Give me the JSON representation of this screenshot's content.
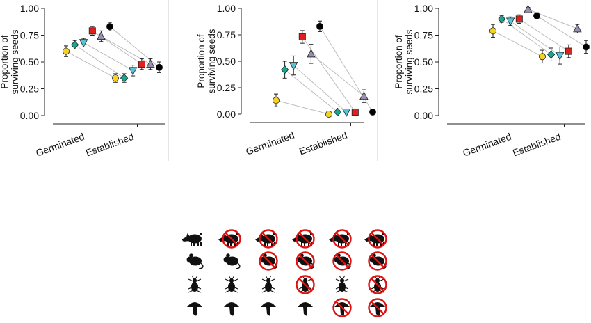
{
  "colors": {
    "guild_1": "#f4d21f",
    "guild_2": "#1aa58e",
    "guild_3": "#56c5d8",
    "guild_4": "#e0201d",
    "guild_5": "#9a8fb0",
    "guild_6": "#000000",
    "exclusion": "#e01010",
    "silhouette": "#111111",
    "connector": "#bdbdbd"
  },
  "legend": {
    "rows": [
      {
        "icon": "boar-silhouette-icon",
        "excluded": [
          false,
          true,
          true,
          true,
          true,
          true
        ]
      },
      {
        "icon": "rodent-silhouette-icon",
        "excluded": [
          false,
          false,
          true,
          true,
          true,
          true
        ]
      },
      {
        "icon": "beetle-silhouette-icon",
        "excluded": [
          false,
          false,
          false,
          true,
          false,
          true
        ]
      },
      {
        "icon": "fungus-silhouette-icon",
        "excluded": [
          false,
          false,
          false,
          false,
          true,
          true
        ]
      }
    ]
  },
  "chart_data": [
    {
      "type": "scatter",
      "ylabel": "Proportion of surviving seeds",
      "ylabel_lines": [
        "Proportion of",
        "surviving seeds"
      ],
      "categories": [
        "Germinated",
        "Established"
      ],
      "ylim": [
        0,
        1
      ],
      "yticks": [
        "0.00",
        "0.25",
        "0.50",
        "0.75",
        "1.00"
      ],
      "series": [
        {
          "marker": "circle",
          "color": "#f4d21f",
          "values": [
            0.6,
            0.35
          ],
          "err": [
            0.05,
            0.04
          ]
        },
        {
          "marker": "diamond",
          "color": "#1aa58e",
          "values": [
            0.66,
            0.35
          ],
          "err": [
            0.04,
            0.04
          ]
        },
        {
          "marker": "triangle-down",
          "color": "#56c5d8",
          "values": [
            0.68,
            0.42
          ],
          "err": [
            0.04,
            0.05
          ]
        },
        {
          "marker": "square",
          "color": "#e0201d",
          "values": [
            0.79,
            0.48
          ],
          "err": [
            0.04,
            0.05
          ]
        },
        {
          "marker": "triangle-up",
          "color": "#9a8fb0",
          "values": [
            0.74,
            0.48
          ],
          "err": [
            0.05,
            0.05
          ]
        },
        {
          "marker": "circle",
          "color": "#000000",
          "values": [
            0.83,
            0.45
          ],
          "err": [
            0.04,
            0.05
          ]
        }
      ]
    },
    {
      "type": "scatter",
      "ylabel": "Proportion of surviving seeds",
      "ylabel_lines": [
        "Proportion of",
        "surviving seeds"
      ],
      "categories": [
        "Germinated",
        "Established"
      ],
      "ylim": [
        0,
        1
      ],
      "yticks": [
        "0.00",
        "0.25",
        "0.50",
        "0.75",
        "1.00"
      ],
      "series": [
        {
          "marker": "circle",
          "color": "#f4d21f",
          "values": [
            0.13,
            0.0
          ],
          "err": [
            0.06,
            0.0
          ]
        },
        {
          "marker": "diamond",
          "color": "#1aa58e",
          "values": [
            0.42,
            0.02
          ],
          "err": [
            0.08,
            0.0
          ]
        },
        {
          "marker": "triangle-down",
          "color": "#56c5d8",
          "values": [
            0.46,
            0.02
          ],
          "err": [
            0.09,
            0.0
          ]
        },
        {
          "marker": "square",
          "color": "#e0201d",
          "values": [
            0.73,
            0.02
          ],
          "err": [
            0.06,
            0.0
          ]
        },
        {
          "marker": "triangle-up",
          "color": "#9a8fb0",
          "values": [
            0.57,
            0.17
          ],
          "err": [
            0.09,
            0.06
          ]
        },
        {
          "marker": "circle",
          "color": "#000000",
          "values": [
            0.83,
            0.02
          ],
          "err": [
            0.05,
            0.0
          ]
        }
      ]
    },
    {
      "type": "scatter",
      "ylabel": "Proportion of surviving seeds",
      "ylabel_lines": [
        "Proportion of",
        "surviving seeds"
      ],
      "categories": [
        "Germinated",
        "Established"
      ],
      "ylim": [
        0,
        1
      ],
      "yticks": [
        "0.00",
        "0.25",
        "0.50",
        "0.75",
        "1.00"
      ],
      "series": [
        {
          "marker": "circle",
          "color": "#f4d21f",
          "values": [
            0.79,
            0.55
          ],
          "err": [
            0.06,
            0.06
          ]
        },
        {
          "marker": "diamond",
          "color": "#1aa58e",
          "values": [
            0.9,
            0.57
          ],
          "err": [
            0.03,
            0.06
          ]
        },
        {
          "marker": "triangle-down",
          "color": "#56c5d8",
          "values": [
            0.88,
            0.56
          ],
          "err": [
            0.04,
            0.08
          ]
        },
        {
          "marker": "square",
          "color": "#e0201d",
          "values": [
            0.9,
            0.6
          ],
          "err": [
            0.04,
            0.06
          ]
        },
        {
          "marker": "triangle-up",
          "color": "#9a8fb0",
          "values": [
            0.99,
            0.81
          ],
          "err": [
            0.02,
            0.04
          ]
        },
        {
          "marker": "circle",
          "color": "#000000",
          "values": [
            0.93,
            0.64
          ],
          "err": [
            0.03,
            0.06
          ]
        }
      ]
    }
  ]
}
